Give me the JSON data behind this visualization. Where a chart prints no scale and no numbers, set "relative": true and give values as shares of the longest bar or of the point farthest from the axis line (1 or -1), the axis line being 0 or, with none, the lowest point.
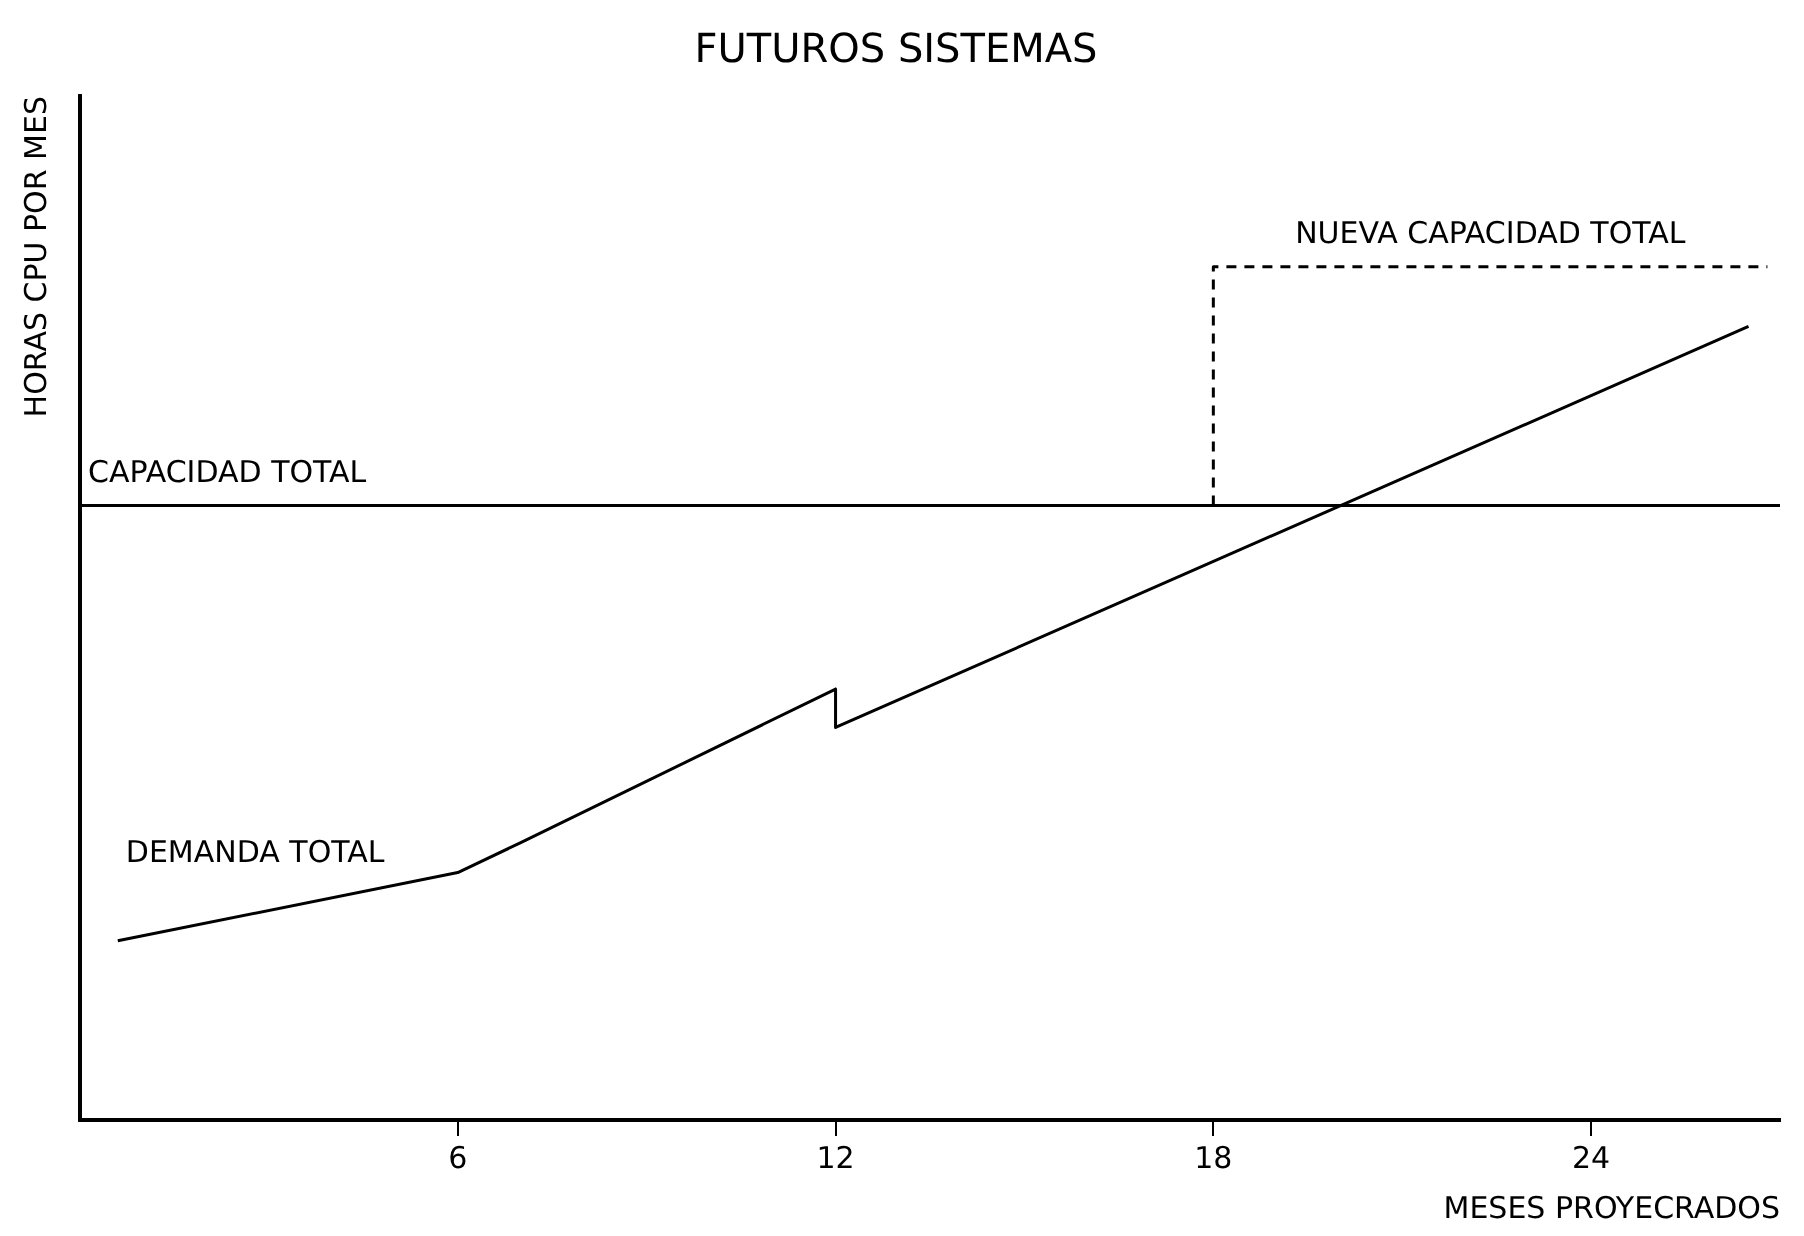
{
  "chart_data": {
    "type": "line",
    "title": "FUTUROS SISTEMAS",
    "xlabel": "MESES PROYECRADOS",
    "ylabel": "HORAS CPU POR MES",
    "relative": true,
    "xlim": [
      0,
      27
    ],
    "xticks": [
      6,
      12,
      18,
      24
    ],
    "grid": false,
    "legend": false,
    "marker": "none",
    "series": [
      {
        "name": "CAPACIDAD TOTAL",
        "color": "#000000",
        "x": [
          0,
          27
        ],
        "values": [
          0.72,
          0.72
        ]
      },
      {
        "name": "DEMANDA TOTAL",
        "color": "#000000",
        "x": [
          0.6,
          6,
          7,
          12,
          12,
          26.5
        ],
        "values": [
          0.21,
          0.29,
          0.325,
          0.505,
          0.46,
          0.93
        ]
      },
      {
        "name": "NUEVA CAPACIDAD TOTAL",
        "color": "#000000",
        "line_style": "dashed",
        "x": [
          18,
          18,
          26.8
        ],
        "values": [
          0.72,
          1,
          1
        ]
      }
    ]
  }
}
